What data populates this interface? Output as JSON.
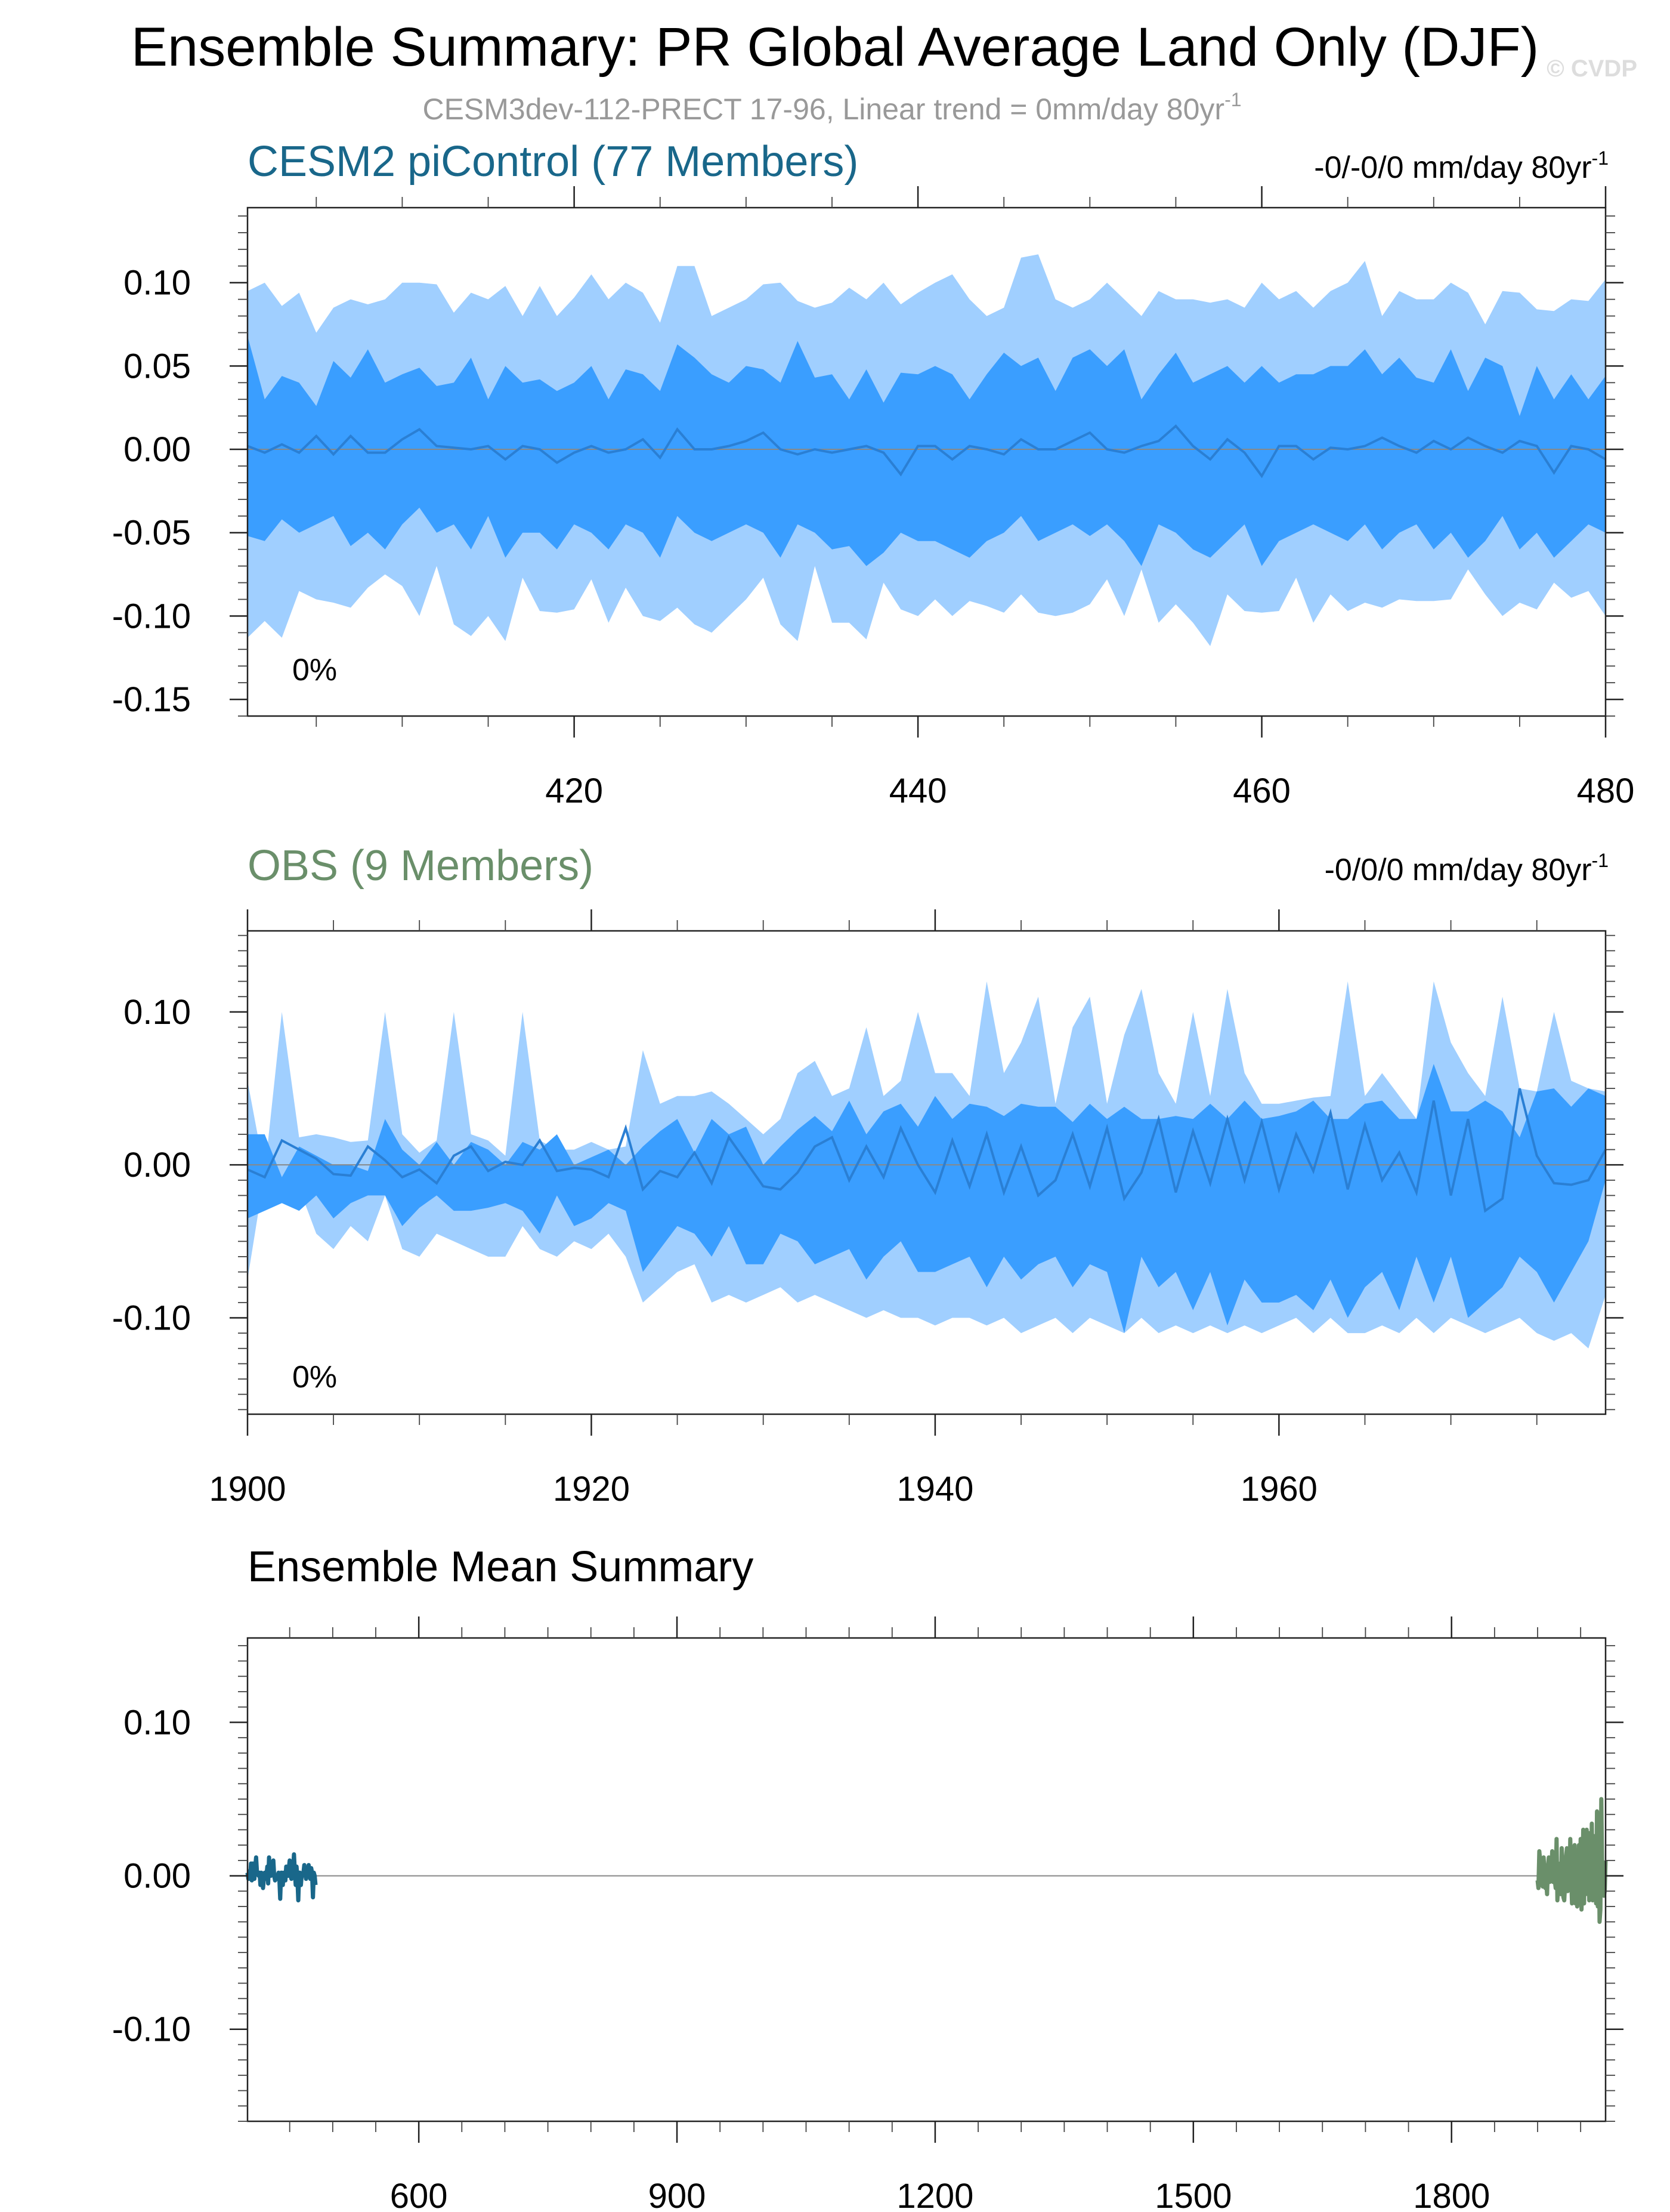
{
  "header": {
    "title": "Ensemble Summary: PR Global Average Land Only (DJF)",
    "subtitle": "CESM3dev-112-PRECT 17-96, Linear trend = 0mm/day 80yr",
    "subtitle_sup": "-1",
    "watermark": "© CVDP"
  },
  "colors": {
    "band_outer": "#A0CFFF",
    "band_inner": "#3A9EFF",
    "mean_line": "#2A7FD4",
    "cesm2_title": "#19678A",
    "obs_title": "#6A8F6A",
    "black_title": "#000000"
  },
  "chart_data": [
    {
      "type": "area",
      "name": "cesm2",
      "title": "CESM2 piControl (77 Members)",
      "trend_text": "-0/-0/0 mm/day 80yr",
      "trend_sup": "-1",
      "percent_label": "0%",
      "xlim": [
        401,
        480
      ],
      "ylim": [
        -0.16,
        0.145
      ],
      "x_ticks": [
        420,
        440,
        460,
        480
      ],
      "x_tick_labels": [
        "420",
        "440",
        "460",
        "480"
      ],
      "y_ticks": [
        0.1,
        0.05,
        0.0,
        -0.05,
        -0.1,
        -0.15
      ],
      "y_tick_labels": [
        "0.10",
        "0.05",
        "0.00",
        "-0.05",
        "-0.10",
        "-0.15"
      ],
      "x_start": 401,
      "outer_upper": [
        0.095,
        0.1,
        0.086,
        0.094,
        0.07,
        0.085,
        0.09,
        0.087,
        0.09,
        0.1,
        0.1,
        0.099,
        0.082,
        0.094,
        0.09,
        0.098,
        0.08,
        0.098,
        0.08,
        0.091,
        0.105,
        0.09,
        0.1,
        0.094,
        0.076,
        0.11,
        0.11,
        0.08,
        0.085,
        0.09,
        0.099,
        0.1,
        0.089,
        0.085,
        0.088,
        0.097,
        0.09,
        0.1,
        0.087,
        0.094,
        0.1,
        0.105,
        0.09,
        0.08,
        0.085,
        0.115,
        0.117,
        0.09,
        0.085,
        0.09,
        0.1,
        0.09,
        0.08,
        0.095,
        0.09,
        0.09,
        0.088,
        0.09,
        0.085,
        0.1,
        0.09,
        0.095,
        0.085,
        0.095,
        0.1,
        0.113,
        0.08,
        0.095,
        0.09,
        0.09,
        0.1,
        0.094,
        0.075,
        0.095,
        0.094,
        0.084,
        0.083,
        0.09,
        0.089,
        0.102
      ],
      "inner_upper": [
        0.068,
        0.03,
        0.044,
        0.04,
        0.026,
        0.053,
        0.043,
        0.06,
        0.04,
        0.045,
        0.049,
        0.038,
        0.04,
        0.055,
        0.03,
        0.05,
        0.04,
        0.042,
        0.035,
        0.04,
        0.05,
        0.03,
        0.048,
        0.045,
        0.035,
        0.063,
        0.055,
        0.045,
        0.04,
        0.05,
        0.048,
        0.04,
        0.065,
        0.043,
        0.045,
        0.03,
        0.048,
        0.028,
        0.046,
        0.045,
        0.05,
        0.045,
        0.03,
        0.045,
        0.058,
        0.05,
        0.055,
        0.035,
        0.055,
        0.06,
        0.05,
        0.06,
        0.03,
        0.045,
        0.058,
        0.04,
        0.045,
        0.05,
        0.04,
        0.05,
        0.04,
        0.045,
        0.045,
        0.05,
        0.05,
        0.06,
        0.045,
        0.055,
        0.043,
        0.04,
        0.06,
        0.035,
        0.055,
        0.05,
        0.02,
        0.05,
        0.03,
        0.045,
        0.03,
        0.044
      ],
      "mean": [
        0.002,
        -0.002,
        0.003,
        -0.002,
        0.008,
        -0.003,
        0.008,
        -0.002,
        -0.002,
        0.006,
        0.012,
        0.002,
        0.001,
        0.0,
        0.002,
        -0.006,
        0.002,
        0.0,
        -0.008,
        -0.002,
        0.002,
        -0.002,
        0.0,
        0.006,
        -0.005,
        0.012,
        0.0,
        0.0,
        0.002,
        0.005,
        0.01,
        0.0,
        -0.003,
        0.0,
        -0.002,
        0.0,
        0.002,
        -0.002,
        -0.015,
        0.002,
        0.002,
        -0.006,
        0.002,
        0.0,
        -0.003,
        0.006,
        0.0,
        0.0,
        0.005,
        0.01,
        0.0,
        -0.002,
        0.002,
        0.005,
        0.014,
        0.002,
        -0.006,
        0.006,
        -0.002,
        -0.016,
        0.002,
        0.002,
        -0.006,
        0.001,
        0.0,
        0.002,
        0.007,
        0.002,
        -0.002,
        0.005,
        0.0,
        0.007,
        0.002,
        -0.002,
        0.005,
        0.002,
        -0.014,
        0.002,
        0.0,
        -0.006
      ],
      "inner_lower": [
        -0.052,
        -0.055,
        -0.042,
        -0.05,
        -0.045,
        -0.04,
        -0.058,
        -0.05,
        -0.06,
        -0.045,
        -0.035,
        -0.05,
        -0.045,
        -0.06,
        -0.04,
        -0.065,
        -0.05,
        -0.05,
        -0.06,
        -0.045,
        -0.05,
        -0.06,
        -0.045,
        -0.05,
        -0.065,
        -0.04,
        -0.05,
        -0.055,
        -0.05,
        -0.045,
        -0.05,
        -0.065,
        -0.045,
        -0.05,
        -0.06,
        -0.058,
        -0.07,
        -0.062,
        -0.05,
        -0.055,
        -0.055,
        -0.06,
        -0.065,
        -0.055,
        -0.05,
        -0.04,
        -0.055,
        -0.05,
        -0.045,
        -0.052,
        -0.045,
        -0.055,
        -0.07,
        -0.045,
        -0.05,
        -0.06,
        -0.065,
        -0.055,
        -0.045,
        -0.07,
        -0.055,
        -0.05,
        -0.045,
        -0.05,
        -0.055,
        -0.045,
        -0.06,
        -0.05,
        -0.045,
        -0.06,
        -0.05,
        -0.065,
        -0.055,
        -0.04,
        -0.06,
        -0.05,
        -0.065,
        -0.055,
        -0.045,
        -0.05
      ],
      "outer_lower": [
        -0.113,
        -0.103,
        -0.113,
        -0.085,
        -0.09,
        -0.092,
        -0.095,
        -0.083,
        -0.075,
        -0.082,
        -0.1,
        -0.07,
        -0.105,
        -0.112,
        -0.1,
        -0.115,
        -0.077,
        -0.097,
        -0.098,
        -0.096,
        -0.078,
        -0.104,
        -0.083,
        -0.1,
        -0.103,
        -0.095,
        -0.105,
        -0.11,
        -0.1,
        -0.09,
        -0.077,
        -0.105,
        -0.115,
        -0.07,
        -0.104,
        -0.104,
        -0.114,
        -0.08,
        -0.096,
        -0.1,
        -0.09,
        -0.1,
        -0.091,
        -0.094,
        -0.098,
        -0.087,
        -0.098,
        -0.1,
        -0.098,
        -0.093,
        -0.078,
        -0.1,
        -0.072,
        -0.104,
        -0.093,
        -0.104,
        -0.118,
        -0.087,
        -0.097,
        -0.098,
        -0.097,
        -0.077,
        -0.104,
        -0.087,
        -0.097,
        -0.092,
        -0.095,
        -0.09,
        -0.091,
        -0.091,
        -0.09,
        -0.072,
        -0.087,
        -0.1,
        -0.092,
        -0.096,
        -0.08,
        -0.089,
        -0.085,
        -0.1
      ]
    },
    {
      "type": "area",
      "name": "obs",
      "title": "OBS (9 Members)",
      "trend_text": "-0/0/0 mm/day 80yr",
      "trend_sup": "-1",
      "percent_label": "0%",
      "xlim": [
        1900,
        1979
      ],
      "ylim": [
        -0.163,
        0.153
      ],
      "x_ticks": [
        1900,
        1920,
        1940,
        1960
      ],
      "x_tick_labels": [
        "1900",
        "1920",
        "1940",
        "1960"
      ],
      "y_ticks": [
        0.1,
        0.0,
        -0.1
      ],
      "y_tick_labels": [
        "0.10",
        "0.00",
        "-0.10"
      ],
      "x_start": 1900,
      "outer_upper": [
        0.055,
        -0.005,
        0.1,
        0.018,
        0.02,
        0.018,
        0.015,
        0.016,
        0.1,
        0.02,
        0.008,
        0.016,
        0.1,
        0.02,
        0.016,
        0.006,
        0.1,
        0.016,
        0.01,
        0.01,
        0.015,
        0.01,
        0.012,
        0.075,
        0.04,
        0.045,
        0.045,
        0.048,
        0.04,
        0.03,
        0.02,
        0.03,
        0.06,
        0.068,
        0.045,
        0.05,
        0.09,
        0.045,
        0.055,
        0.1,
        0.06,
        0.06,
        0.045,
        0.12,
        0.06,
        0.08,
        0.11,
        0.04,
        0.09,
        0.11,
        0.04,
        0.085,
        0.115,
        0.06,
        0.04,
        0.1,
        0.045,
        0.115,
        0.06,
        0.04,
        0.04,
        0.042,
        0.044,
        0.045,
        0.12,
        0.045,
        0.06,
        0.045,
        0.03,
        0.12,
        0.08,
        0.06,
        0.045,
        0.11,
        0.05,
        0.048,
        0.1,
        0.055,
        0.05,
        0.048
      ],
      "inner_upper": [
        0.02,
        0.02,
        -0.008,
        0.012,
        0.006,
        0.0,
        0.0,
        -0.004,
        0.03,
        0.01,
        0.0,
        0.015,
        0.0,
        0.015,
        0.01,
        0.0,
        0.015,
        0.01,
        0.02,
        0.0,
        0.005,
        0.01,
        0.0,
        0.012,
        0.022,
        0.03,
        0.008,
        0.03,
        0.02,
        0.025,
        0.0,
        0.012,
        0.023,
        0.032,
        0.022,
        0.042,
        0.02,
        0.035,
        0.04,
        0.025,
        0.045,
        0.03,
        0.04,
        0.038,
        0.032,
        0.04,
        0.038,
        0.038,
        0.028,
        0.04,
        0.03,
        0.038,
        0.03,
        0.03,
        0.032,
        0.03,
        0.04,
        0.03,
        0.042,
        0.03,
        0.032,
        0.035,
        0.042,
        0.03,
        0.03,
        0.04,
        0.042,
        0.03,
        0.03,
        0.066,
        0.035,
        0.035,
        0.042,
        0.035,
        0.018,
        0.048,
        0.05,
        0.038,
        0.05,
        0.045
      ],
      "mean": [
        -0.003,
        -0.008,
        0.016,
        0.01,
        0.004,
        -0.006,
        -0.007,
        0.012,
        0.003,
        -0.008,
        -0.003,
        -0.012,
        0.006,
        0.012,
        -0.004,
        0.002,
        0.0,
        0.016,
        -0.004,
        -0.002,
        -0.003,
        -0.008,
        0.024,
        -0.016,
        -0.004,
        -0.008,
        0.008,
        -0.012,
        0.018,
        0.002,
        -0.014,
        -0.016,
        -0.005,
        0.012,
        0.018,
        -0.01,
        0.012,
        -0.008,
        0.024,
        0.0,
        -0.018,
        0.016,
        -0.014,
        0.02,
        -0.018,
        0.012,
        -0.02,
        -0.01,
        0.02,
        -0.014,
        0.024,
        -0.022,
        -0.005,
        0.03,
        -0.018,
        0.022,
        -0.012,
        0.03,
        -0.01,
        0.028,
        -0.016,
        0.02,
        -0.004,
        0.034,
        -0.016,
        0.026,
        -0.01,
        0.008,
        -0.018,
        0.042,
        -0.02,
        0.03,
        -0.03,
        -0.022,
        0.05,
        0.006,
        -0.012,
        -0.013,
        -0.01,
        0.01
      ],
      "inner_lower": [
        -0.035,
        -0.03,
        -0.025,
        -0.03,
        -0.02,
        -0.035,
        -0.025,
        -0.02,
        -0.02,
        -0.04,
        -0.028,
        -0.02,
        -0.03,
        -0.03,
        -0.028,
        -0.025,
        -0.03,
        -0.045,
        -0.02,
        -0.04,
        -0.035,
        -0.025,
        -0.03,
        -0.07,
        -0.055,
        -0.04,
        -0.045,
        -0.06,
        -0.04,
        -0.065,
        -0.065,
        -0.045,
        -0.05,
        -0.065,
        -0.06,
        -0.055,
        -0.075,
        -0.06,
        -0.05,
        -0.07,
        -0.07,
        -0.065,
        -0.06,
        -0.08,
        -0.06,
        -0.075,
        -0.065,
        -0.06,
        -0.08,
        -0.065,
        -0.07,
        -0.11,
        -0.06,
        -0.08,
        -0.07,
        -0.095,
        -0.07,
        -0.105,
        -0.075,
        -0.09,
        -0.09,
        -0.085,
        -0.095,
        -0.075,
        -0.1,
        -0.08,
        -0.07,
        -0.095,
        -0.06,
        -0.09,
        -0.06,
        -0.1,
        -0.09,
        -0.08,
        -0.06,
        -0.07,
        -0.09,
        -0.07,
        -0.05,
        -0.01
      ],
      "outer_lower": [
        -0.075,
        -0.005,
        -0.015,
        -0.015,
        -0.045,
        -0.055,
        -0.04,
        -0.05,
        -0.02,
        -0.055,
        -0.06,
        -0.045,
        -0.05,
        -0.055,
        -0.06,
        -0.06,
        -0.04,
        -0.055,
        -0.06,
        -0.05,
        -0.055,
        -0.045,
        -0.06,
        -0.09,
        -0.08,
        -0.07,
        -0.065,
        -0.09,
        -0.085,
        -0.09,
        -0.085,
        -0.08,
        -0.09,
        -0.085,
        -0.09,
        -0.095,
        -0.1,
        -0.095,
        -0.1,
        -0.1,
        -0.105,
        -0.1,
        -0.1,
        -0.105,
        -0.1,
        -0.11,
        -0.105,
        -0.1,
        -0.11,
        -0.1,
        -0.105,
        -0.11,
        -0.1,
        -0.11,
        -0.105,
        -0.11,
        -0.105,
        -0.11,
        -0.105,
        -0.11,
        -0.105,
        -0.1,
        -0.11,
        -0.1,
        -0.11,
        -0.11,
        -0.105,
        -0.11,
        -0.1,
        -0.11,
        -0.1,
        -0.105,
        -0.11,
        -0.105,
        -0.1,
        -0.11,
        -0.115,
        -0.11,
        -0.12,
        -0.085
      ]
    },
    {
      "type": "line",
      "name": "ensemble-mean",
      "title": "Ensemble Mean Summary",
      "xlim": [
        401,
        1979
      ],
      "ylim": [
        -0.16,
        0.155
      ],
      "x_ticks": [
        600,
        900,
        1200,
        1500,
        1800
      ],
      "x_tick_labels": [
        "600",
        "900",
        "1200",
        "1500",
        "1800"
      ],
      "y_ticks": [
        0.1,
        0.0,
        -0.1
      ],
      "y_tick_labels": [
        "0.10",
        "0.00",
        "-0.10"
      ],
      "series": [
        {
          "x_start": 401,
          "color": "#19678A",
          "values": [
            0.002,
            -0.002,
            0.003,
            -0.002,
            0.008,
            -0.003,
            0.008,
            -0.002,
            -0.002,
            0.006,
            0.012,
            0.002,
            0.001,
            0.0,
            0.002,
            -0.006,
            0.002,
            0.0,
            -0.008,
            -0.002,
            0.002,
            -0.002,
            0.0,
            0.006,
            -0.005,
            0.012,
            0.0,
            0.0,
            0.002,
            0.005,
            0.01,
            0.0,
            -0.003,
            0.0,
            -0.002,
            0.0,
            0.002,
            -0.002,
            -0.015,
            0.002,
            0.002,
            -0.006,
            0.002,
            0.0,
            -0.003,
            0.006,
            0.0,
            0.0,
            0.005,
            0.01,
            0.0,
            -0.002,
            0.002,
            0.005,
            0.014,
            0.002,
            -0.006,
            0.006,
            -0.002,
            -0.016,
            0.002,
            0.002,
            -0.006,
            0.001,
            0.0,
            0.002,
            0.007,
            0.002,
            -0.002,
            0.005,
            0.0,
            0.007,
            0.002,
            -0.002,
            0.005,
            0.002,
            -0.014,
            0.002,
            0.0,
            -0.006
          ]
        },
        {
          "x_start": 1900,
          "color": "#6A8F6A",
          "values": [
            -0.003,
            -0.008,
            0.016,
            0.01,
            0.004,
            -0.006,
            -0.007,
            0.012,
            0.003,
            -0.008,
            -0.003,
            -0.012,
            0.006,
            0.012,
            -0.004,
            0.002,
            0.0,
            0.016,
            -0.004,
            -0.002,
            -0.003,
            -0.008,
            0.024,
            -0.016,
            -0.004,
            -0.008,
            0.008,
            -0.012,
            0.018,
            0.002,
            -0.014,
            -0.016,
            -0.005,
            0.012,
            0.018,
            -0.01,
            0.012,
            -0.008,
            0.024,
            0.0,
            -0.018,
            0.016,
            -0.014,
            0.02,
            -0.018,
            0.012,
            -0.02,
            -0.01,
            0.02,
            -0.014,
            0.024,
            -0.022,
            -0.005,
            0.03,
            -0.018,
            0.022,
            -0.012,
            0.03,
            -0.01,
            0.028,
            -0.016,
            0.02,
            -0.004,
            0.034,
            -0.016,
            0.026,
            -0.01,
            0.008,
            -0.018,
            0.042,
            -0.02,
            0.03,
            -0.03,
            -0.022,
            0.05,
            0.006,
            -0.012,
            -0.013,
            -0.01,
            0.01
          ]
        }
      ]
    }
  ]
}
